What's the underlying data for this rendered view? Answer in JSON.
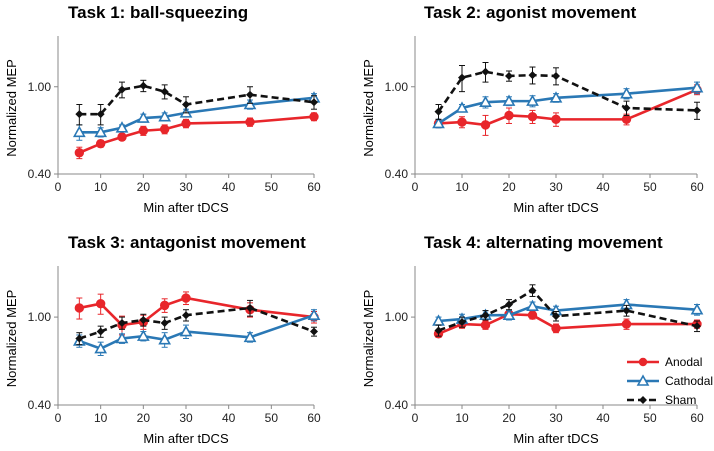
{
  "colors": {
    "anodal": "#e8262b",
    "cathodal": "#2a78b5",
    "sham": "#111111"
  },
  "legend": {
    "entries": [
      {
        "key": "anodal",
        "label": "Anodal",
        "marker": "circle"
      },
      {
        "key": "cathodal",
        "label": "Cathodal",
        "marker": "triangle"
      },
      {
        "key": "sham",
        "label": "Sham",
        "marker": "diamond"
      }
    ]
  },
  "chart_data": [
    {
      "type": "line",
      "title": "Task 1: ball-squeezing",
      "xlabel": "Min after tDCS",
      "ylabel": "Normalized MEP",
      "xlim": [
        0,
        60
      ],
      "xticks": [
        0,
        10,
        20,
        30,
        40,
        50,
        60
      ],
      "ylim": [
        0.4,
        1.6
      ],
      "yscale": "log",
      "yticks": [
        0.4,
        1.0
      ],
      "ytick_labels": [
        "0.40",
        "1.00"
      ],
      "x": [
        5,
        10,
        15,
        20,
        25,
        30,
        45,
        60
      ],
      "series": [
        {
          "name": "Anodal",
          "key": "anodal",
          "values": [
            0.5,
            0.55,
            0.59,
            0.63,
            0.64,
            0.68,
            0.69,
            0.73
          ],
          "err": [
            0.03,
            0.02,
            0.02,
            0.03,
            0.03,
            0.03,
            0.03,
            0.03
          ]
        },
        {
          "name": "Cathodal",
          "key": "cathodal",
          "values": [
            0.62,
            0.62,
            0.65,
            0.72,
            0.73,
            0.76,
            0.83,
            0.89
          ],
          "err": [
            0.05,
            0.03,
            0.02,
            0.03,
            0.03,
            0.03,
            0.04,
            0.04
          ]
        },
        {
          "name": "Sham",
          "key": "sham",
          "values": [
            0.75,
            0.75,
            0.97,
            1.01,
            0.95,
            0.83,
            0.92,
            0.85
          ],
          "err": [
            0.08,
            0.08,
            0.08,
            0.06,
            0.07,
            0.07,
            0.08,
            0.06
          ]
        }
      ]
    },
    {
      "type": "line",
      "title": "Task 2: agonist movement",
      "xlabel": "Min after tDCS",
      "ylabel": "Normalized MEP",
      "xlim": [
        0,
        60
      ],
      "xticks": [
        0,
        10,
        20,
        30,
        40,
        50,
        60
      ],
      "ylim": [
        0.4,
        1.6
      ],
      "yscale": "log",
      "yticks": [
        0.4,
        1.0
      ],
      "ytick_labels": [
        "0.40",
        "1.00"
      ],
      "x": [
        5,
        10,
        15,
        20,
        25,
        30,
        45,
        60
      ],
      "series": [
        {
          "name": "Anodal",
          "key": "anodal",
          "values": [
            0.68,
            0.69,
            0.67,
            0.74,
            0.73,
            0.71,
            0.71,
            0.97
          ],
          "err": [
            0.03,
            0.04,
            0.07,
            0.06,
            0.05,
            0.05,
            0.04,
            0.05
          ]
        },
        {
          "name": "Cathodal",
          "key": "cathodal",
          "values": [
            0.68,
            0.8,
            0.85,
            0.86,
            0.86,
            0.89,
            0.93,
            0.99
          ],
          "err": [
            0.03,
            0.03,
            0.05,
            0.04,
            0.05,
            0.04,
            0.05,
            0.06
          ]
        },
        {
          "name": "Sham",
          "key": "sham",
          "values": [
            0.77,
            1.1,
            1.17,
            1.12,
            1.13,
            1.12,
            0.8,
            0.78
          ],
          "err": [
            0.06,
            0.15,
            0.12,
            0.06,
            0.1,
            0.1,
            0.06,
            0.07
          ]
        }
      ]
    },
    {
      "type": "line",
      "title": "Task 3: antagonist movement",
      "xlabel": "Min after tDCS",
      "ylabel": "Normalized MEP",
      "xlim": [
        0,
        60
      ],
      "xticks": [
        0,
        10,
        20,
        30,
        40,
        50,
        60
      ],
      "ylim": [
        0.4,
        1.6
      ],
      "yscale": "log",
      "yticks": [
        0.4,
        1.0
      ],
      "ytick_labels": [
        "0.40",
        "1.00"
      ],
      "x": [
        5,
        10,
        15,
        20,
        25,
        30,
        45,
        60
      ],
      "series": [
        {
          "name": "Anodal",
          "key": "anodal",
          "values": [
            1.1,
            1.15,
            0.92,
            0.95,
            1.13,
            1.22,
            1.08,
            1.0
          ],
          "err": [
            0.12,
            0.12,
            0.09,
            0.07,
            0.08,
            0.08,
            0.08,
            0.06
          ]
        },
        {
          "name": "Cathodal",
          "key": "cathodal",
          "values": [
            0.78,
            0.72,
            0.8,
            0.82,
            0.79,
            0.86,
            0.81,
            1.02
          ],
          "err": [
            0.05,
            0.05,
            0.04,
            0.04,
            0.06,
            0.06,
            0.04,
            0.06
          ]
        },
        {
          "name": "Sham",
          "key": "sham",
          "values": [
            0.8,
            0.86,
            0.94,
            0.97,
            0.94,
            1.02,
            1.1,
            0.86
          ],
          "err": [
            0.05,
            0.05,
            0.06,
            0.06,
            0.06,
            0.06,
            0.09,
            0.04
          ]
        }
      ]
    },
    {
      "type": "line",
      "title": "Task 4: alternating movement",
      "xlabel": "Min after tDCS",
      "ylabel": "Normalized MEP",
      "xlim": [
        0,
        60
      ],
      "xticks": [
        0,
        10,
        20,
        30,
        40,
        50,
        60
      ],
      "ylim": [
        0.4,
        1.6
      ],
      "yscale": "log",
      "yticks": [
        0.4,
        1.0
      ],
      "ytick_labels": [
        "0.40",
        "1.00"
      ],
      "x": [
        5,
        10,
        15,
        20,
        25,
        30,
        45,
        60
      ],
      "series": [
        {
          "name": "Anodal",
          "key": "anodal",
          "values": [
            0.84,
            0.93,
            0.92,
            1.03,
            1.02,
            0.89,
            0.93,
            0.93
          ],
          "err": [
            0.03,
            0.04,
            0.04,
            0.04,
            0.04,
            0.04,
            0.05,
            0.04
          ]
        },
        {
          "name": "Cathodal",
          "key": "cathodal",
          "values": [
            0.96,
            0.98,
            1.02,
            1.02,
            1.12,
            1.07,
            1.14,
            1.08
          ],
          "err": [
            0.04,
            0.05,
            0.05,
            0.05,
            0.05,
            0.05,
            0.06,
            0.06
          ]
        },
        {
          "name": "Sham",
          "key": "sham",
          "values": [
            0.87,
            0.95,
            1.02,
            1.14,
            1.32,
            1.01,
            1.07,
            0.91
          ],
          "err": [
            0.05,
            0.05,
            0.05,
            0.06,
            0.08,
            0.05,
            0.06,
            0.05
          ]
        }
      ]
    }
  ]
}
